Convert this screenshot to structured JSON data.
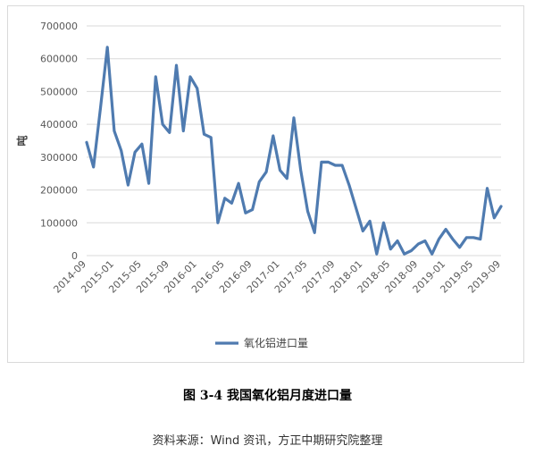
{
  "chart_data": {
    "type": "line",
    "ylabel": "吨",
    "ylim": [
      0,
      700000
    ],
    "yticks": [
      "0",
      "100000",
      "200000",
      "300000",
      "400000",
      "500000",
      "600000",
      "700000"
    ],
    "xtick_labels": [
      "2014-09",
      "2015-01",
      "2015-05",
      "2015-09",
      "2016-01",
      "2016-05",
      "2016-09",
      "2017-01",
      "2017-05",
      "2017-09",
      "2018-01",
      "2018-05",
      "2018-09",
      "2019-01",
      "2019-05",
      "2019-09"
    ],
    "grid": "horizontal",
    "legend_position": "bottom",
    "series": [
      {
        "name": "氧化铝进口量",
        "color": "#4f7bb0",
        "x": [
          "2014-09",
          "2014-10",
          "2014-11",
          "2014-12",
          "2015-01",
          "2015-02",
          "2015-03",
          "2015-04",
          "2015-05",
          "2015-06",
          "2015-07",
          "2015-08",
          "2015-09",
          "2015-10",
          "2015-11",
          "2015-12",
          "2016-01",
          "2016-02",
          "2016-03",
          "2016-04",
          "2016-05",
          "2016-06",
          "2016-07",
          "2016-08",
          "2016-09",
          "2016-10",
          "2016-11",
          "2016-12",
          "2017-01",
          "2017-02",
          "2017-03",
          "2017-04",
          "2017-05",
          "2017-06",
          "2017-07",
          "2017-08",
          "2017-09",
          "2017-10",
          "2017-11",
          "2017-12",
          "2018-01",
          "2018-02",
          "2018-03",
          "2018-04",
          "2018-05",
          "2018-06",
          "2018-07",
          "2018-08",
          "2018-09",
          "2018-10",
          "2018-11",
          "2018-12",
          "2019-01",
          "2019-02",
          "2019-03",
          "2019-04",
          "2019-05",
          "2019-06",
          "2019-07",
          "2019-08",
          "2019-09"
        ],
        "values": [
          345000,
          270000,
          450000,
          635000,
          380000,
          320000,
          215000,
          315000,
          340000,
          220000,
          545000,
          400000,
          375000,
          580000,
          380000,
          545000,
          510000,
          370000,
          360000,
          100000,
          175000,
          160000,
          220000,
          130000,
          140000,
          225000,
          255000,
          365000,
          260000,
          235000,
          420000,
          260000,
          135000,
          70000,
          285000,
          285000,
          275000,
          275000,
          215000,
          145000,
          75000,
          105000,
          5000,
          100000,
          20000,
          45000,
          5000,
          15000,
          35000,
          45000,
          5000,
          50000,
          80000,
          50000,
          25000,
          55000,
          55000,
          50000,
          205000,
          115000,
          150000
        ]
      }
    ]
  },
  "caption": "图 3-4  我国氧化铝月度进口量",
  "source": "资料来源：Wind 资讯，方正中期研究院整理"
}
